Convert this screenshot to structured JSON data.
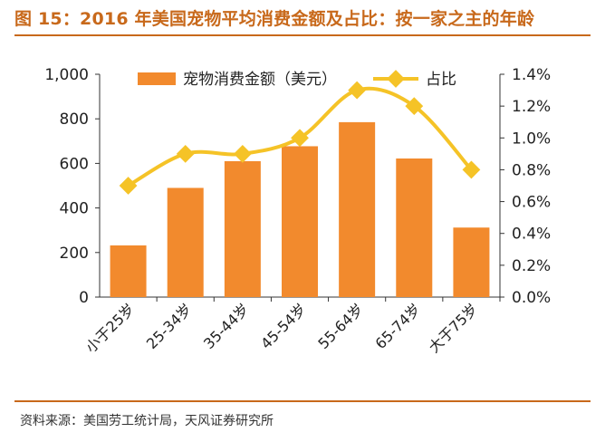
{
  "title": "图 15：2016 年美国宠物平均消费金额及占比：按一家之主的年龄",
  "source": "资料来源：美国劳工统计局，天风证券研究所",
  "chart_data": {
    "type": "bar",
    "categories": [
      "小于25岁",
      "25-34岁",
      "35-44岁",
      "45-54岁",
      "55-64岁",
      "65-74岁",
      "大于75岁"
    ],
    "series": [
      {
        "name": "宠物消费金额（美元）",
        "type": "bar",
        "axis": "left",
        "color": "#f28a2d",
        "values": [
          232,
          490,
          610,
          677,
          785,
          622,
          312
        ]
      },
      {
        "name": "占比",
        "type": "line",
        "axis": "right",
        "color": "#f5c327",
        "values": [
          0.7,
          0.9,
          0.9,
          1.0,
          1.3,
          1.2,
          0.8
        ]
      }
    ],
    "y_left": {
      "ylim": [
        0,
        1000
      ],
      "ticks": [
        "0",
        "200",
        "400",
        "600",
        "800",
        "1,000"
      ]
    },
    "y_right": {
      "ylim": [
        0,
        1.4
      ],
      "ticks": [
        "0.0%",
        "0.2%",
        "0.4%",
        "0.6%",
        "0.8%",
        "1.0%",
        "1.2%",
        "1.4%"
      ]
    },
    "legend_position": "top-center",
    "grid": false
  }
}
